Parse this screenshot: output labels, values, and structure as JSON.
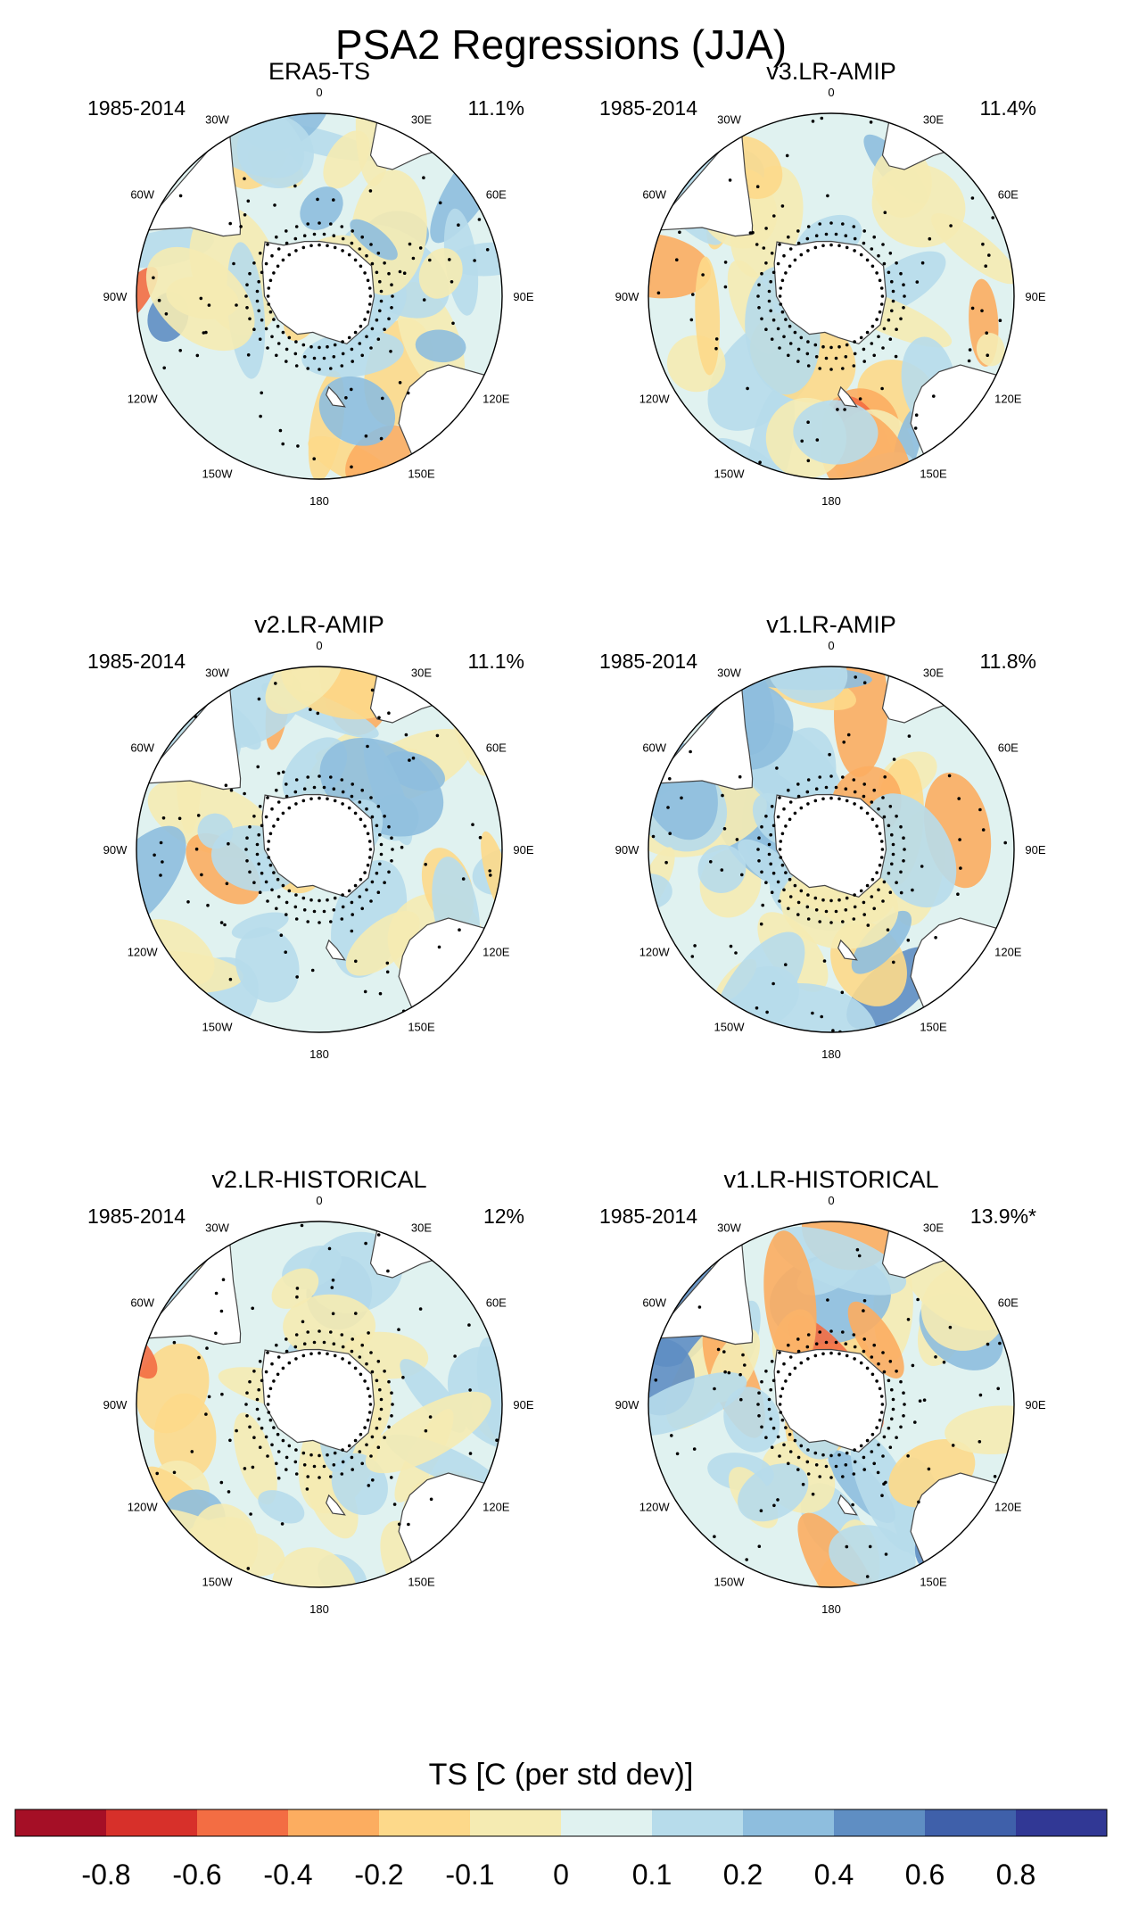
{
  "figure_title": "PSA2 Regressions (JJA)",
  "chart_data": {
    "type": "heatmap",
    "title": "PSA2 Regressions (JJA)",
    "projection": "south-polar-stereographic",
    "variable": "TS",
    "panels": [
      {
        "name": "ERA5-TS",
        "period": "1985-2014",
        "percent": "11.1%"
      },
      {
        "name": "v3.LR-AMIP",
        "period": "1985-2014",
        "percent": "11.4%"
      },
      {
        "name": "v2.LR-AMIP",
        "period": "1985-2014",
        "percent": "11.1%"
      },
      {
        "name": "v1.LR-AMIP",
        "period": "1985-2014",
        "percent": "11.8%"
      },
      {
        "name": "v2.LR-HISTORICAL",
        "period": "1985-2014",
        "percent": "12%"
      },
      {
        "name": "v1.LR-HISTORICAL",
        "period": "1985-2014",
        "percent": "13.9%*"
      }
    ],
    "longitude_labels": [
      "0",
      "30E",
      "60E",
      "90E",
      "120E",
      "150E",
      "180",
      "150W",
      "120W",
      "90W",
      "60W",
      "30W"
    ],
    "colorbar": {
      "label": "TS [C (per std dev)]",
      "ticks": [
        "-0.8",
        "-0.6",
        "-0.4",
        "-0.2",
        "-0.1",
        "0",
        "0.1",
        "0.2",
        "0.4",
        "0.6",
        "0.8"
      ],
      "colors": [
        "#a50f26",
        "#d7302a",
        "#f36d43",
        "#fcad60",
        "#fdd98a",
        "#f5ebb2",
        "#e0f2f0",
        "#b7dceb",
        "#8ebede",
        "#5f8ec3",
        "#3f60aa",
        "#313895"
      ]
    },
    "land_color": "#ffffff"
  }
}
